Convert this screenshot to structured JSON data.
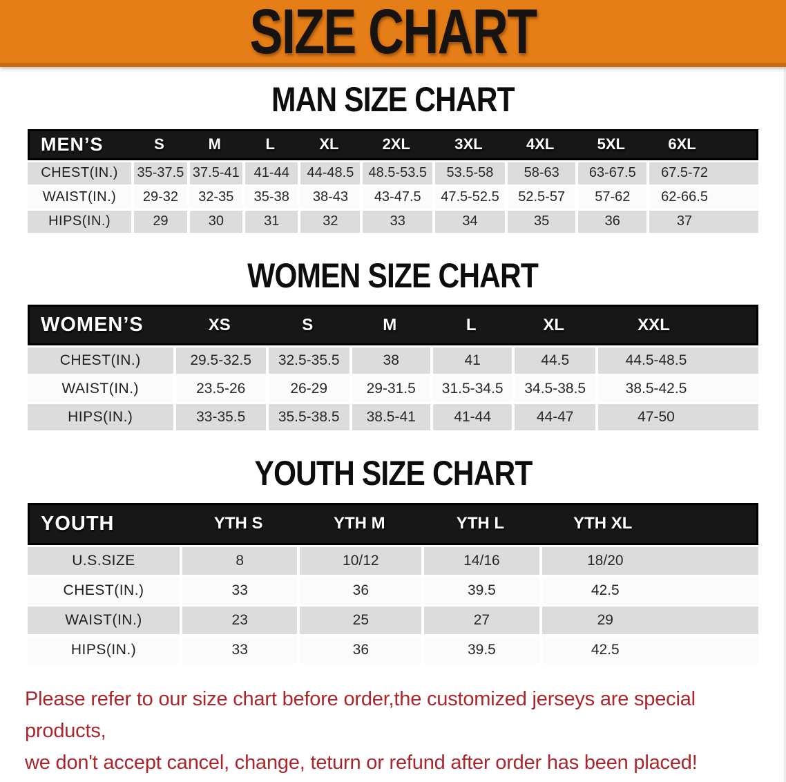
{
  "banner": {
    "title": "SIZE CHART"
  },
  "colors": {
    "banner-orange": "#E67E17",
    "banner-orange-dark": "#C96C10",
    "header-black": "#171717",
    "row-gray": "#DCDCDC",
    "disclaimer-red": "#A8262C"
  },
  "sections": [
    {
      "title": "MAN SIZE CHART",
      "header_label": "MEN’S",
      "columns": [
        "S",
        "M",
        "L",
        "XL",
        "2XL",
        "3XL",
        "4XL",
        "5XL",
        "6XL"
      ],
      "rows": [
        {
          "label": "CHEST(IN.)",
          "values": [
            "35-37.5",
            "37.5-41",
            "41-44",
            "44-48.5",
            "48.5-53.5",
            "53.5-58",
            "58-63",
            "63-67.5",
            "67.5-72"
          ]
        },
        {
          "label": "WAIST(IN.)",
          "values": [
            "29-32",
            "32-35",
            "35-38",
            "38-43",
            "43-47.5",
            "47.5-52.5",
            "52.5-57",
            "57-62",
            "62-66.5"
          ]
        },
        {
          "label": "HIPS(IN.)",
          "values": [
            "29",
            "30",
            "31",
            "32",
            "33",
            "34",
            "35",
            "36",
            "37"
          ]
        }
      ]
    },
    {
      "title": "WOMEN SIZE CHART",
      "header_label": "WOMEN’S",
      "columns": [
        "XS",
        "S",
        "M",
        "L",
        "XL",
        "XXL"
      ],
      "rows": [
        {
          "label": "CHEST(IN.)",
          "values": [
            "29.5-32.5",
            "32.5-35.5",
            "38",
            "41",
            "44.5",
            "44.5-48.5"
          ]
        },
        {
          "label": "WAIST(IN.)",
          "values": [
            "23.5-26",
            "26-29",
            "29-31.5",
            "31.5-34.5",
            "34.5-38.5",
            "38.5-42.5"
          ]
        },
        {
          "label": "HIPS(IN.)",
          "values": [
            "33-35.5",
            "35.5-38.5",
            "38.5-41",
            "41-44",
            "44-47",
            "47-50"
          ]
        }
      ]
    },
    {
      "title": "YOUTH SIZE CHART",
      "header_label": "YOUTH",
      "columns": [
        "YTH S",
        "YTH M",
        "YTH L",
        "YTH XL"
      ],
      "rows": [
        {
          "label": "U.S.SIZE",
          "values": [
            "8",
            "10/12",
            "14/16",
            "18/20"
          ]
        },
        {
          "label": "CHEST(IN.)",
          "values": [
            "33",
            "36",
            "39.5",
            "42.5"
          ]
        },
        {
          "label": "WAIST(IN.)",
          "values": [
            "23",
            "25",
            "27",
            "29"
          ]
        },
        {
          "label": "HIPS(IN.)",
          "values": [
            "33",
            "36",
            "39.5",
            "42.5"
          ]
        }
      ]
    }
  ],
  "disclaimer": {
    "line1": "Please refer to our size chart before order,the customized jerseys are special products,",
    "line2": "we don't accept cancel, change, teturn or refund after order has been placed!"
  }
}
